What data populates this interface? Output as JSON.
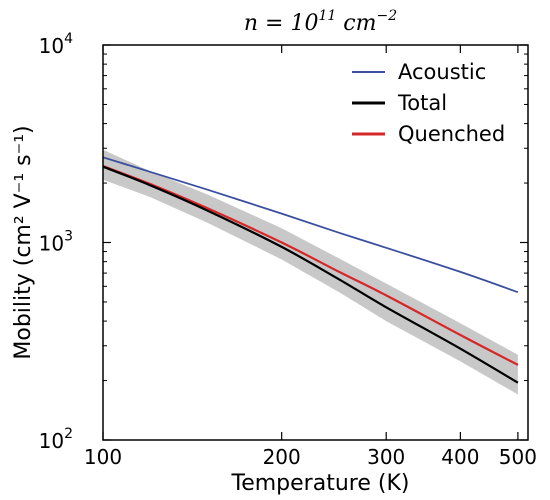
{
  "chart_data": {
    "type": "line",
    "title": "n = 10^11 cm^-2",
    "title_parts": {
      "base": "n = 10",
      "exp": "11",
      "unit": "cm",
      "unit_exp": "−2"
    },
    "xlabel": "Temperature (K)",
    "ylabel": "Mobility (cm² V⁻¹ s⁻¹)",
    "x_scale": "log",
    "y_scale": "log",
    "xlim": [
      100,
      520
    ],
    "ylim": [
      100,
      10000
    ],
    "x_ticks": [
      {
        "value": 100,
        "label": "100"
      },
      {
        "value": 200,
        "label": "200"
      },
      {
        "value": 300,
        "label": "300"
      },
      {
        "value": 400,
        "label": "400"
      },
      {
        "value": 500,
        "label": "500"
      }
    ],
    "y_ticks": [
      {
        "value": 100,
        "base": "10",
        "exp": "2"
      },
      {
        "value": 1000,
        "base": "10",
        "exp": "3"
      },
      {
        "value": 10000,
        "base": "10",
        "exp": "4"
      }
    ],
    "legend_position": "top-right",
    "grid": false,
    "x": [
      100,
      120,
      150,
      200,
      250,
      300,
      400,
      500
    ],
    "series": [
      {
        "name": "Acoustic",
        "color": "#3a4fa0",
        "values": [
          2700,
          2280,
          1850,
          1400,
          1120,
          940,
          710,
          560
        ]
      },
      {
        "name": "Total",
        "color": "#000000",
        "values": [
          2420,
          1950,
          1450,
          950,
          650,
          470,
          290,
          195
        ]
      },
      {
        "name": "Quenched",
        "color": "#d62728",
        "values": [
          2440,
          1980,
          1490,
          1000,
          710,
          540,
          340,
          240
        ]
      }
    ],
    "uncertainty_band": {
      "color": "#c8c8c8",
      "lower": [
        2080,
        1700,
        1260,
        820,
        560,
        400,
        250,
        170
      ],
      "upper": [
        2950,
        2300,
        1750,
        1180,
        830,
        620,
        390,
        270
      ]
    }
  }
}
